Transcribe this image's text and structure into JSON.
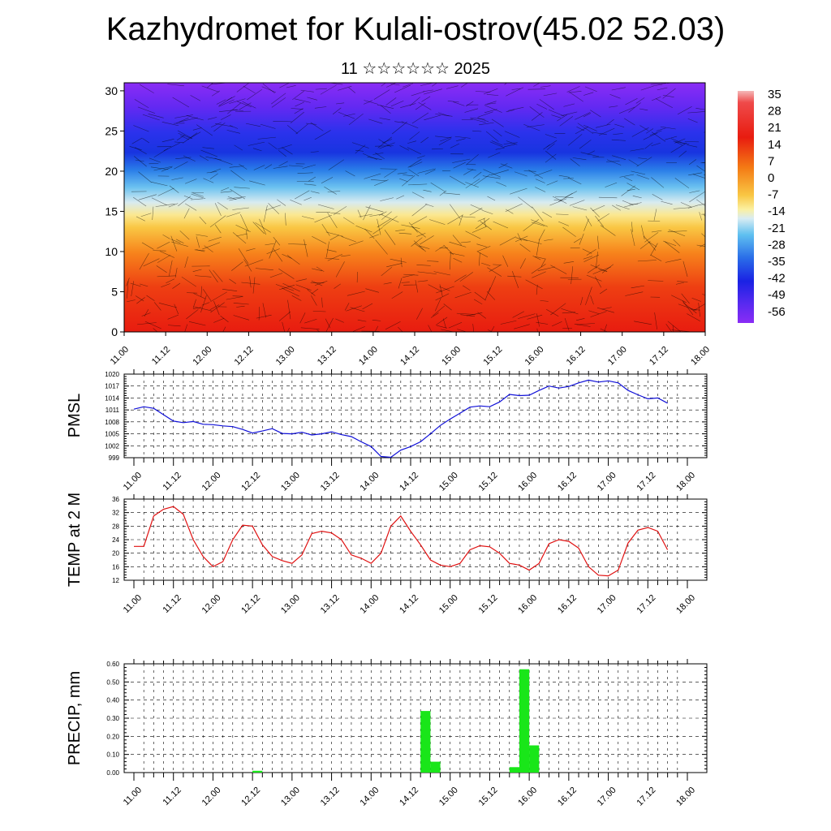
{
  "title": "Kazhydromet for Kulali-ostrov(45.02 52.03)",
  "subtitle": "11 ☆☆☆☆☆☆ 2025",
  "colors": {
    "pmsl": "#1010d8",
    "temp": "#e01010",
    "precip": "#19e619"
  },
  "x_ticks": [
    "11.00",
    "11.12",
    "12.00",
    "12.12",
    "13.00",
    "13.12",
    "14.00",
    "14.12",
    "15.00",
    "15.12",
    "16.00",
    "16.12",
    "17.00",
    "17.12",
    "18.00"
  ],
  "chart_data": [
    {
      "type": "heatmap",
      "xlim": [
        0,
        168
      ],
      "ylim": [
        0,
        31
      ],
      "yticks": [
        0,
        5,
        10,
        15,
        20,
        25,
        30
      ],
      "colorbar_labels": [
        "35",
        "28",
        "21",
        "14",
        "7",
        "0",
        "-7",
        "-14",
        "-21",
        "-28",
        "-35",
        "-42",
        "-49",
        "-56"
      ],
      "colorbar_range": [
        -60,
        38
      ],
      "overlay": "wind streamlines"
    },
    {
      "type": "line",
      "ylabel": "PMSL",
      "ylim": [
        999,
        1020
      ],
      "yticks": [
        "1020",
        "1017",
        "1014",
        "1011",
        "1008",
        "1005",
        "1002",
        "999"
      ],
      "x": [
        0,
        3,
        6,
        9,
        12,
        15,
        18,
        21,
        24,
        27,
        30,
        33,
        36,
        39,
        42,
        45,
        48,
        51,
        54,
        57,
        60,
        63,
        66,
        69,
        72,
        75,
        78,
        81,
        84,
        87,
        90,
        93,
        96,
        99,
        102,
        105,
        108,
        111,
        114,
        117,
        120,
        123,
        126,
        129,
        132,
        135,
        138,
        141,
        144,
        147,
        150,
        153,
        156
      ],
      "values": [
        1011.2,
        1011.8,
        1011.4,
        1009.8,
        1008.2,
        1007.8,
        1008.1,
        1007.4,
        1007.3,
        1007.0,
        1006.8,
        1006.1,
        1005.2,
        1005.7,
        1006.3,
        1005.1,
        1005.0,
        1005.4,
        1004.7,
        1005.0,
        1005.5,
        1004.8,
        1004.3,
        1003.0,
        1001.8,
        999.3,
        999.1,
        1000.9,
        1001.8,
        1003.0,
        1005.0,
        1007.1,
        1008.7,
        1010.2,
        1011.7,
        1012.0,
        1011.8,
        1013.0,
        1014.9,
        1014.6,
        1014.7,
        1015.9,
        1017.0,
        1016.5,
        1016.9,
        1017.8,
        1018.5,
        1018.0,
        1018.3,
        1017.8,
        1015.9,
        1014.8,
        1013.8
      ],
      "extra_tail": [
        [
          159,
          1014.0
        ],
        [
          162,
          1012.7
        ]
      ]
    },
    {
      "type": "line",
      "ylabel": "TEMP at 2 M",
      "ylim": [
        12,
        36
      ],
      "yticks": [
        "36",
        "32",
        "28",
        "24",
        "20",
        "16",
        "12"
      ],
      "x": [
        0,
        3,
        6,
        9,
        12,
        15,
        18,
        21,
        24,
        27,
        30,
        33,
        36,
        39,
        42,
        45,
        48,
        51,
        54,
        57,
        60,
        63,
        66,
        69,
        72,
        75,
        78,
        81,
        84,
        87,
        90,
        93,
        96,
        99,
        102,
        105,
        108,
        111,
        114,
        117,
        120,
        123,
        126,
        129,
        132,
        135,
        138,
        141,
        144,
        147,
        150,
        153,
        156,
        159,
        162
      ],
      "values": [
        22,
        22,
        31,
        33,
        33.8,
        31.5,
        24,
        19,
        16,
        17.5,
        24,
        28.3,
        28,
        22.5,
        19,
        17.8,
        17,
        19.5,
        25.8,
        26.5,
        26,
        24,
        19.5,
        18.5,
        17,
        20,
        28,
        31,
        26.5,
        22.5,
        18,
        16.5,
        16,
        17,
        21,
        22.2,
        21.9,
        20,
        17,
        16.5,
        15,
        17,
        22.8,
        24,
        23.5,
        21.5,
        16,
        13.5,
        13.3,
        15,
        23,
        26.8,
        27.6,
        26.5,
        21
      ]
    },
    {
      "type": "bar",
      "ylabel": "PRECIP, mm",
      "ylim": [
        0,
        0.6
      ],
      "yticks": [
        "0.60",
        "0.50",
        "0.40",
        "0.30",
        "0.20",
        "0.10",
        "0.00"
      ],
      "bins_hours": [
        36,
        87,
        90,
        114,
        117,
        120
      ],
      "values": [
        0.01,
        0.34,
        0.06,
        0.03,
        0.57,
        0.15
      ],
      "bin_width_hours": 3
    }
  ],
  "axes": {
    "pmsl_label": "PMSL",
    "temp_label": "TEMP at 2 M",
    "precip_label": "PRECIP, mm"
  }
}
